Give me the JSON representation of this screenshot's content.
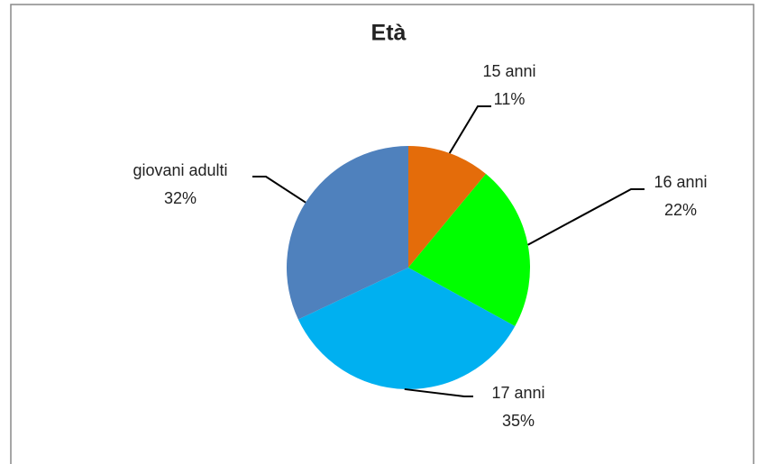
{
  "chart_data": {
    "type": "pie",
    "title": "Età",
    "categories": [
      "15 anni",
      "16 anni",
      "17 anni",
      "giovani adulti"
    ],
    "values": [
      11,
      22,
      35,
      32
    ],
    "value_labels": [
      "11%",
      "22%",
      "35%",
      "32%"
    ],
    "colors": [
      "#e46c0a",
      "#00ff00",
      "#00b0f0",
      "#4f81bd"
    ]
  }
}
